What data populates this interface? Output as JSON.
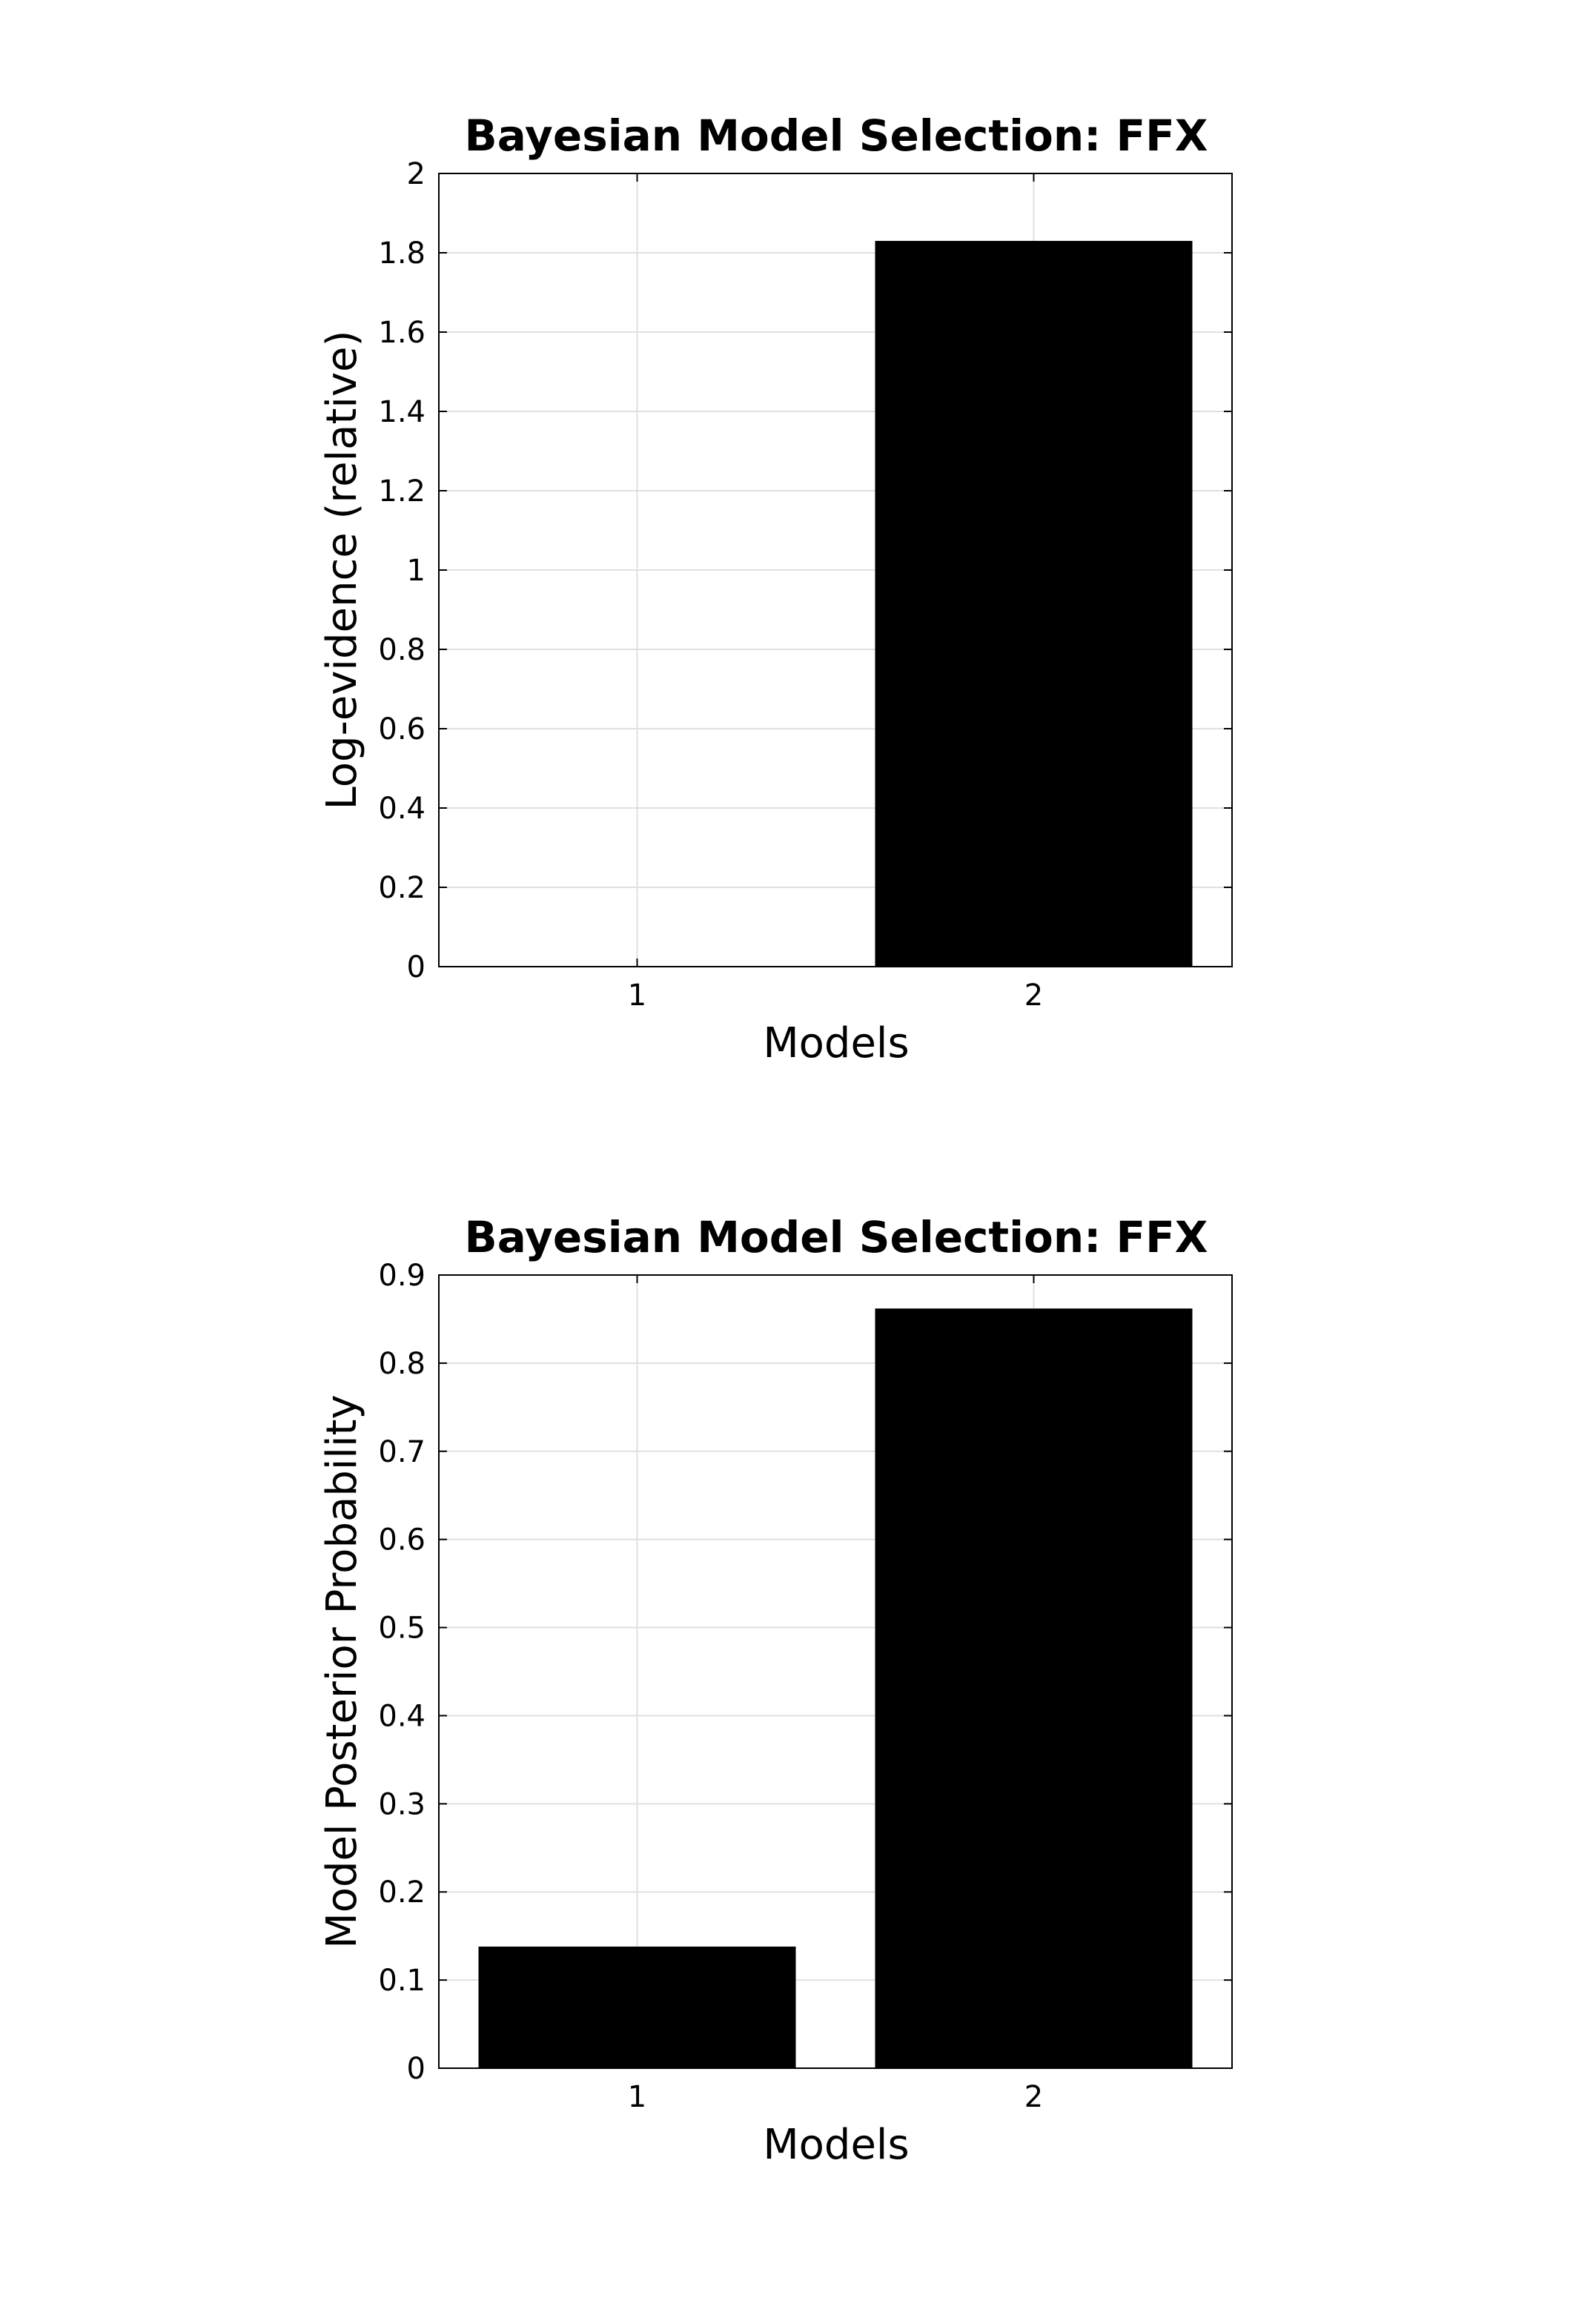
{
  "chart_data": [
    {
      "type": "bar",
      "title": "Bayesian Model Selection: FFX",
      "xlabel": "Models",
      "ylabel": "Log-evidence (relative)",
      "categories": [
        "1",
        "2"
      ],
      "values": [
        0,
        1.83
      ],
      "ylim": [
        0,
        2
      ],
      "yticks": [
        "0",
        "0.2",
        "0.4",
        "0.6",
        "0.8",
        "1",
        "1.2",
        "1.4",
        "1.6",
        "1.8",
        "2"
      ],
      "grid": true,
      "bar_color": "#000000",
      "grid_color": "#e0e0e0"
    },
    {
      "type": "bar",
      "title": "Bayesian Model Selection: FFX",
      "xlabel": "Models",
      "ylabel": "Model Posterior Probability",
      "categories": [
        "1",
        "2"
      ],
      "values": [
        0.138,
        0.862
      ],
      "ylim": [
        0,
        0.9
      ],
      "yticks": [
        "0",
        "0.1",
        "0.2",
        "0.3",
        "0.4",
        "0.5",
        "0.6",
        "0.7",
        "0.8",
        "0.9"
      ],
      "grid": true,
      "bar_color": "#000000",
      "grid_color": "#e0e0e0"
    }
  ]
}
